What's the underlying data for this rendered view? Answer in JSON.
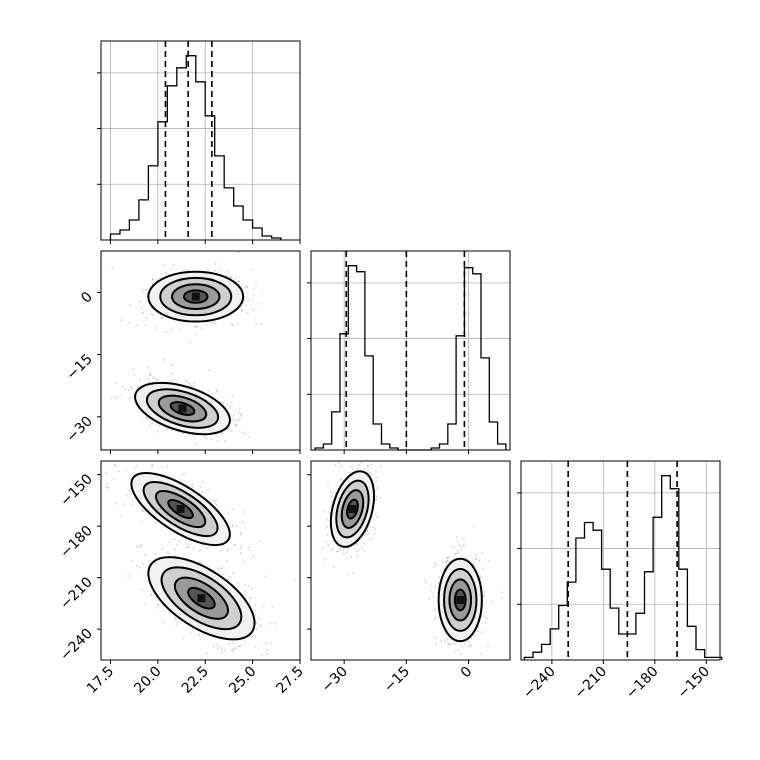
{
  "chart_data": {
    "type": "corner",
    "parameters": [
      "",
      "",
      ""
    ],
    "quantiles": [
      0.16,
      0.5,
      0.84
    ],
    "grid": true,
    "axes": {
      "p0": {
        "range": [
          17,
          27.5
        ],
        "ticks": [
          17.5,
          20.0,
          22.5,
          25.0,
          27.5
        ],
        "tick_labels": [
          "17.5",
          "20.0",
          "22.5",
          "25.0",
          "27.5"
        ]
      },
      "p1": {
        "range": [
          -38,
          10
        ],
        "ticks": [
          -30,
          -15,
          0
        ],
        "tick_labels": [
          "−30",
          "−15",
          "0"
        ]
      },
      "p2": {
        "range": [
          -258,
          -142
        ],
        "ticks": [
          -240,
          -210,
          -180,
          -150
        ],
        "tick_labels": [
          "−240",
          "−210",
          "−180",
          "−150"
        ]
      }
    },
    "diagonal": [
      {
        "param": "p0",
        "quantile_values": [
          20.4,
          21.6,
          22.85
        ],
        "bin_edges": [
          17.5,
          18.0,
          18.5,
          19.0,
          19.5,
          20.0,
          20.5,
          21.0,
          21.5,
          22.0,
          22.5,
          23.0,
          23.5,
          24.0,
          24.5,
          25.0,
          25.5,
          26.0,
          26.5
        ],
        "counts": [
          3,
          5,
          10,
          20,
          37,
          59,
          77,
          86,
          92,
          79,
          62,
          42,
          26,
          17,
          10,
          6,
          2,
          1
        ]
      },
      {
        "param": "p1",
        "quantile_values": [
          -29.5,
          -15.0,
          -1.0
        ],
        "bin_edges": [
          -37,
          -35,
          -33,
          -31,
          -29,
          -27,
          -25,
          -23,
          -21,
          -19,
          -17,
          -15,
          -13,
          -11,
          -9,
          -7,
          -5,
          -3,
          -1,
          1,
          3,
          5,
          7,
          9
        ],
        "counts": [
          1,
          3,
          19,
          58,
          92,
          89,
          47,
          13,
          3,
          1,
          0,
          0,
          0,
          0,
          1,
          3,
          13,
          57,
          91,
          88,
          46,
          14,
          3
        ]
      },
      {
        "param": "p2",
        "quantile_values": [
          -230.5,
          -196.0,
          -167.0
        ],
        "bin_edges": [
          -256,
          -251,
          -246,
          -241,
          -236,
          -231,
          -226,
          -221,
          -216,
          -211,
          -206,
          -201,
          -196,
          -191,
          -186,
          -181,
          -176,
          -171,
          -166,
          -161,
          -156,
          -151,
          -146,
          -141
        ],
        "counts": [
          1,
          3,
          6,
          12,
          21,
          30,
          47,
          53,
          50,
          35,
          20,
          10,
          10,
          18,
          34,
          55,
          71,
          66,
          35,
          13,
          4,
          1,
          1
        ]
      }
    ],
    "pairs": [
      {
        "x": "p0",
        "y": "p1",
        "modes": [
          {
            "x_center": 22.0,
            "y_center": -1.0,
            "x_sigma": 1.25,
            "y_sigma": 3.0,
            "correlation": 0.0
          },
          {
            "x_center": 21.3,
            "y_center": -28.0,
            "x_sigma": 1.25,
            "y_sigma": 3.1,
            "correlation": -0.45
          }
        ]
      },
      {
        "x": "p0",
        "y": "p2",
        "modes": [
          {
            "x_center": 21.2,
            "y_center": -170.0,
            "x_sigma": 1.3,
            "y_sigma": 10.5,
            "correlation": -0.7
          },
          {
            "x_center": 22.3,
            "y_center": -222.0,
            "x_sigma": 1.4,
            "y_sigma": 12.0,
            "correlation": -0.6
          }
        ]
      },
      {
        "x": "p1",
        "y": "p2",
        "modes": [
          {
            "x_center": -28.0,
            "y_center": -170.0,
            "x_sigma": 2.6,
            "y_sigma": 11.0,
            "correlation": 0.35
          },
          {
            "x_center": -2.0,
            "y_center": -223.0,
            "x_sigma": 2.6,
            "y_sigma": 12.0,
            "correlation": 0.0
          }
        ]
      }
    ]
  }
}
